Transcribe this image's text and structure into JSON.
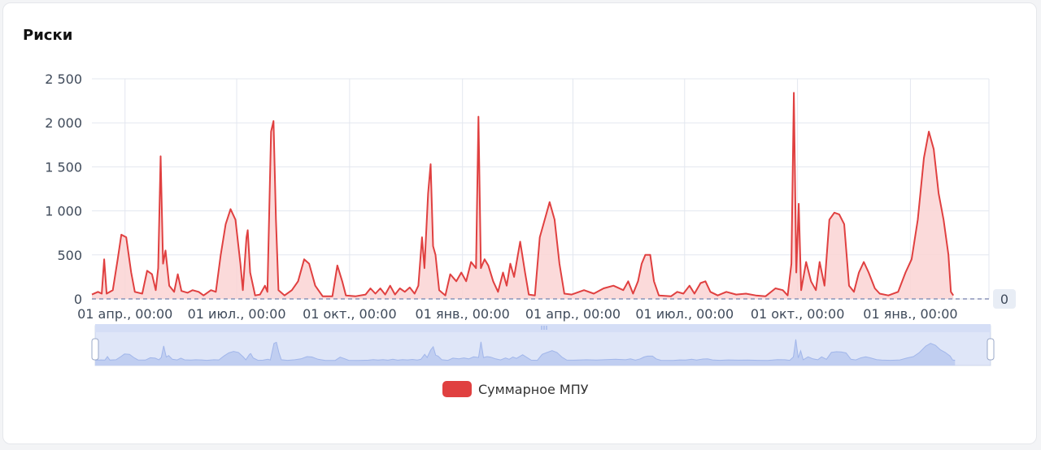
{
  "card": {
    "title": "Риски"
  },
  "chart_data": {
    "type": "area",
    "title": "Риски",
    "x_ticks": [
      "01 апр., 00:00",
      "01 июл., 00:00",
      "01 окт., 00:00",
      "01 янв., 00:00",
      "01 апр., 00:00",
      "01 июл., 00:00",
      "01 окт., 00:00",
      "01 янв., 00:00"
    ],
    "y_ticks": [
      "0",
      "500",
      "1 000",
      "1 500",
      "2 000",
      "2 500"
    ],
    "ylim": [
      0,
      2500
    ],
    "x_range": [
      "2022-03-05",
      "2024-03-05"
    ],
    "grid": true,
    "legend_position": "bottom",
    "markline": {
      "label": "0",
      "value": 0
    },
    "has_datazoom": true,
    "series": [
      {
        "name": "Суммарное МПУ",
        "color": "#e04040",
        "fill": "#fad3d3",
        "points": [
          [
            "2022-03-05",
            50
          ],
          [
            "2022-03-10",
            80
          ],
          [
            "2022-03-13",
            60
          ],
          [
            "2022-03-15",
            450
          ],
          [
            "2022-03-17",
            60
          ],
          [
            "2022-03-22",
            100
          ],
          [
            "2022-03-26",
            450
          ],
          [
            "2022-03-29",
            730
          ],
          [
            "2022-04-02",
            700
          ],
          [
            "2022-04-06",
            300
          ],
          [
            "2022-04-09",
            80
          ],
          [
            "2022-04-15",
            60
          ],
          [
            "2022-04-19",
            320
          ],
          [
            "2022-04-23",
            280
          ],
          [
            "2022-04-26",
            100
          ],
          [
            "2022-04-28",
            350
          ],
          [
            "2022-04-30",
            1620
          ],
          [
            "2022-05-02",
            400
          ],
          [
            "2022-05-04",
            550
          ],
          [
            "2022-05-07",
            150
          ],
          [
            "2022-05-11",
            80
          ],
          [
            "2022-05-14",
            280
          ],
          [
            "2022-05-17",
            90
          ],
          [
            "2022-05-22",
            70
          ],
          [
            "2022-05-26",
            100
          ],
          [
            "2022-05-31",
            80
          ],
          [
            "2022-06-04",
            40
          ],
          [
            "2022-06-10",
            100
          ],
          [
            "2022-06-14",
            80
          ],
          [
            "2022-06-18",
            500
          ],
          [
            "2022-06-22",
            850
          ],
          [
            "2022-06-26",
            1020
          ],
          [
            "2022-06-30",
            900
          ],
          [
            "2022-07-04",
            400
          ],
          [
            "2022-07-06",
            100
          ],
          [
            "2022-07-09",
            700
          ],
          [
            "2022-07-10",
            780
          ],
          [
            "2022-07-12",
            300
          ],
          [
            "2022-07-16",
            40
          ],
          [
            "2022-07-20",
            50
          ],
          [
            "2022-07-24",
            150
          ],
          [
            "2022-07-26",
            80
          ],
          [
            "2022-07-29",
            1900
          ],
          [
            "2022-07-31",
            2020
          ],
          [
            "2022-08-02",
            900
          ],
          [
            "2022-08-04",
            100
          ],
          [
            "2022-08-09",
            40
          ],
          [
            "2022-08-15",
            100
          ],
          [
            "2022-08-20",
            200
          ],
          [
            "2022-08-25",
            450
          ],
          [
            "2022-08-29",
            400
          ],
          [
            "2022-09-03",
            150
          ],
          [
            "2022-09-09",
            30
          ],
          [
            "2022-09-17",
            30
          ],
          [
            "2022-09-21",
            380
          ],
          [
            "2022-09-25",
            200
          ],
          [
            "2022-09-28",
            40
          ],
          [
            "2022-10-06",
            30
          ],
          [
            "2022-10-14",
            50
          ],
          [
            "2022-10-18",
            120
          ],
          [
            "2022-10-22",
            60
          ],
          [
            "2022-10-26",
            120
          ],
          [
            "2022-10-30",
            50
          ],
          [
            "2022-11-03",
            150
          ],
          [
            "2022-11-07",
            50
          ],
          [
            "2022-11-11",
            120
          ],
          [
            "2022-11-15",
            80
          ],
          [
            "2022-11-19",
            130
          ],
          [
            "2022-11-23",
            60
          ],
          [
            "2022-11-26",
            150
          ],
          [
            "2022-11-29",
            700
          ],
          [
            "2022-12-01",
            350
          ],
          [
            "2022-12-04",
            1200
          ],
          [
            "2022-12-06",
            1530
          ],
          [
            "2022-12-08",
            600
          ],
          [
            "2022-12-10",
            500
          ],
          [
            "2022-12-13",
            100
          ],
          [
            "2022-12-18",
            40
          ],
          [
            "2022-12-22",
            280
          ],
          [
            "2022-12-27",
            200
          ],
          [
            "2022-12-31",
            300
          ],
          [
            "2023-01-04",
            200
          ],
          [
            "2023-01-08",
            420
          ],
          [
            "2023-01-12",
            350
          ],
          [
            "2023-01-14",
            2070
          ],
          [
            "2023-01-16",
            350
          ],
          [
            "2023-01-19",
            450
          ],
          [
            "2023-01-22",
            380
          ],
          [
            "2023-01-26",
            200
          ],
          [
            "2023-01-30",
            80
          ],
          [
            "2023-02-03",
            300
          ],
          [
            "2023-02-06",
            150
          ],
          [
            "2023-02-09",
            400
          ],
          [
            "2023-02-12",
            250
          ],
          [
            "2023-02-17",
            650
          ],
          [
            "2023-02-21",
            300
          ],
          [
            "2023-02-24",
            50
          ],
          [
            "2023-03-01",
            40
          ],
          [
            "2023-03-05",
            700
          ],
          [
            "2023-03-09",
            900
          ],
          [
            "2023-03-13",
            1100
          ],
          [
            "2023-03-17",
            900
          ],
          [
            "2023-03-21",
            400
          ],
          [
            "2023-03-25",
            60
          ],
          [
            "2023-03-31",
            50
          ],
          [
            "2023-04-10",
            100
          ],
          [
            "2023-04-18",
            60
          ],
          [
            "2023-04-26",
            120
          ],
          [
            "2023-05-04",
            150
          ],
          [
            "2023-05-12",
            100
          ],
          [
            "2023-05-16",
            200
          ],
          [
            "2023-05-20",
            60
          ],
          [
            "2023-05-24",
            200
          ],
          [
            "2023-05-27",
            400
          ],
          [
            "2023-05-30",
            500
          ],
          [
            "2023-06-03",
            500
          ],
          [
            "2023-06-06",
            200
          ],
          [
            "2023-06-10",
            40
          ],
          [
            "2023-06-20",
            30
          ],
          [
            "2023-06-25",
            80
          ],
          [
            "2023-06-30",
            60
          ],
          [
            "2023-07-05",
            150
          ],
          [
            "2023-07-09",
            60
          ],
          [
            "2023-07-14",
            180
          ],
          [
            "2023-07-18",
            200
          ],
          [
            "2023-07-22",
            80
          ],
          [
            "2023-07-28",
            40
          ],
          [
            "2023-08-04",
            80
          ],
          [
            "2023-08-12",
            50
          ],
          [
            "2023-08-20",
            60
          ],
          [
            "2023-08-28",
            40
          ],
          [
            "2023-09-05",
            30
          ],
          [
            "2023-09-13",
            120
          ],
          [
            "2023-09-19",
            100
          ],
          [
            "2023-09-23",
            40
          ],
          [
            "2023-09-26",
            400
          ],
          [
            "2023-09-28",
            2340
          ],
          [
            "2023-09-30",
            300
          ],
          [
            "2023-10-02",
            1080
          ],
          [
            "2023-10-04",
            100
          ],
          [
            "2023-10-08",
            420
          ],
          [
            "2023-10-12",
            200
          ],
          [
            "2023-10-16",
            100
          ],
          [
            "2023-10-19",
            420
          ],
          [
            "2023-10-23",
            150
          ],
          [
            "2023-10-27",
            900
          ],
          [
            "2023-10-31",
            980
          ],
          [
            "2023-11-04",
            960
          ],
          [
            "2023-11-08",
            850
          ],
          [
            "2023-11-12",
            150
          ],
          [
            "2023-11-16",
            80
          ],
          [
            "2023-11-20",
            300
          ],
          [
            "2023-11-24",
            420
          ],
          [
            "2023-11-28",
            300
          ],
          [
            "2023-12-03",
            120
          ],
          [
            "2023-12-07",
            60
          ],
          [
            "2023-12-14",
            40
          ],
          [
            "2023-12-22",
            80
          ],
          [
            "2023-12-28",
            300
          ],
          [
            "2024-01-02",
            450
          ],
          [
            "2024-01-07",
            900
          ],
          [
            "2024-01-12",
            1600
          ],
          [
            "2024-01-16",
            1900
          ],
          [
            "2024-01-20",
            1700
          ],
          [
            "2024-01-24",
            1200
          ],
          [
            "2024-01-28",
            900
          ],
          [
            "2024-02-01",
            500
          ],
          [
            "2024-02-03",
            80
          ],
          [
            "2024-02-05",
            40
          ]
        ]
      }
    ]
  }
}
